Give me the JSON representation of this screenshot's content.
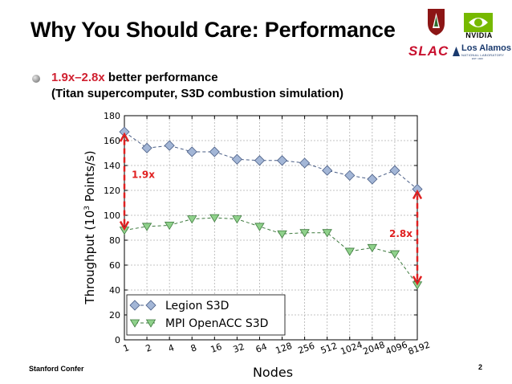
{
  "slide": {
    "title": "Why You Should Care: Performance",
    "bullet": {
      "highlight": "1.9x–2.8x",
      "rest": " better performance",
      "line2": "(Titan supercomputer, S3D combustion simulation)"
    },
    "footer_left": "Stanford Confer",
    "page_number": "2"
  },
  "logos": {
    "nvidia": "NVIDIA",
    "slac": "SLAC",
    "los_alamos": "Los Alamos",
    "los_alamos_sub": "NATIONAL LABORATORY",
    "los_alamos_est": "EST. 1943"
  },
  "colors": {
    "legion": "#a3b6d6",
    "legion_stroke": "#4a5e86",
    "openacc": "#8fd18b",
    "openacc_stroke": "#3e7a3e",
    "arrow": "#e02020",
    "annotation": "#e02020"
  },
  "chart_data": {
    "type": "line",
    "xlabel": "Nodes",
    "ylabel_prefix": "Throughput (10",
    "ylabel_sup": "3",
    "ylabel_suffix": " Points/s)",
    "categories": [
      "1",
      "2",
      "4",
      "8",
      "16",
      "32",
      "64",
      "128",
      "256",
      "512",
      "1024",
      "2048",
      "4096",
      "8192"
    ],
    "ylim": [
      0,
      180
    ],
    "yticks": [
      0,
      20,
      40,
      60,
      80,
      100,
      120,
      140,
      160,
      180
    ],
    "grid": true,
    "legend_position": "bottom-left",
    "series": [
      {
        "name": "Legion S3D",
        "marker": "diamond",
        "values": [
          167,
          154,
          156,
          151,
          151,
          145,
          144,
          144,
          142,
          136,
          132,
          129,
          136,
          121
        ]
      },
      {
        "name": "MPI OpenACC S3D",
        "marker": "triangle-down",
        "values": [
          88,
          91,
          92,
          97,
          98,
          97,
          91,
          85,
          86,
          86,
          71,
          74,
          69,
          44
        ]
      }
    ],
    "annotations": [
      {
        "label": "1.9x",
        "category": "1",
        "from": 88,
        "to": 167
      },
      {
        "label": "2.8x",
        "category": "8192",
        "from": 44,
        "to": 121
      }
    ]
  }
}
